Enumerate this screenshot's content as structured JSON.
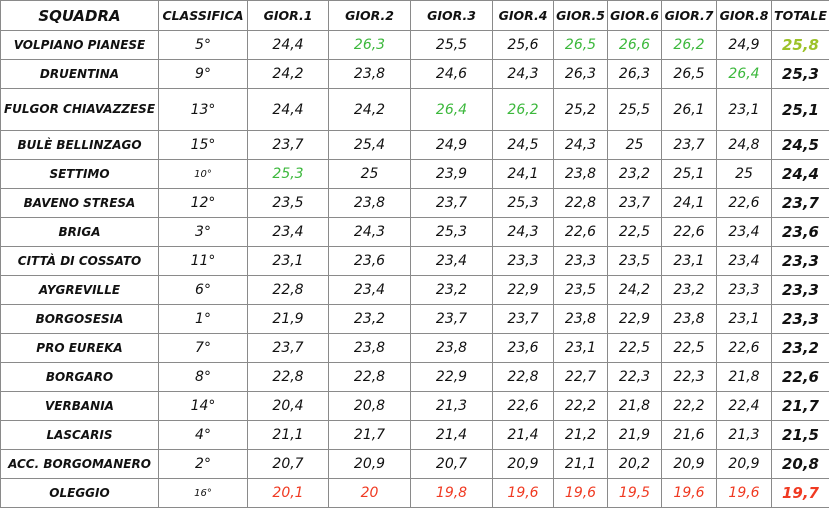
{
  "colors": {
    "green": "#3cb83c",
    "total_green": "#9cc228",
    "red": "#f03a22",
    "border": "#8a8a8a"
  },
  "headers": [
    "SQUADRA",
    "CLASSIFICA",
    "GIOR.1",
    "GIOR.2",
    "GIOR.3",
    "GIOR.4",
    "GIOR.5",
    "GIOR.6",
    "GIOR.7",
    "GIOR.8",
    "TOTALE"
  ],
  "rows": [
    {
      "team": "VOLPIANO PIANESE",
      "rank": "5°",
      "scores": [
        "24,4",
        "26,3",
        "25,5",
        "25,6",
        "26,5",
        "26,6",
        "26,2",
        "24,9"
      ],
      "total": "25,8",
      "hl": [
        "",
        "g",
        "",
        "",
        "g",
        "g",
        "g",
        ""
      ],
      "total_hl": "lg"
    },
    {
      "team": "DRUENTINA",
      "rank": "9°",
      "scores": [
        "24,2",
        "23,8",
        "24,6",
        "24,3",
        "26,3",
        "26,3",
        "26,5",
        "26,4"
      ],
      "total": "25,3",
      "hl": [
        "",
        "",
        "",
        "",
        "",
        "",
        "",
        "g"
      ],
      "total_hl": ""
    },
    {
      "team": "FULGOR CHIAVAZZESE",
      "rank": "13°",
      "scores": [
        "24,4",
        "24,2",
        "26,4",
        "26,2",
        "25,2",
        "25,5",
        "26,1",
        "23,1"
      ],
      "total": "25,1",
      "hl": [
        "",
        "",
        "g",
        "g",
        "",
        "",
        "",
        ""
      ],
      "total_hl": "",
      "tall": true
    },
    {
      "team": "BULÈ BELLINZAGO",
      "rank": "15°",
      "scores": [
        "23,7",
        "25,4",
        "24,9",
        "24,5",
        "24,3",
        "25",
        "23,7",
        "24,8"
      ],
      "total": "24,5",
      "hl": [],
      "total_hl": ""
    },
    {
      "team": "SETTIMO",
      "rank": "10°",
      "rank_small": true,
      "scores": [
        "25,3",
        "25",
        "23,9",
        "24,1",
        "23,8",
        "23,2",
        "25,1",
        "25"
      ],
      "total": "24,4",
      "hl": [
        "g"
      ],
      "total_hl": ""
    },
    {
      "team": "BAVENO STRESA",
      "rank": "12°",
      "scores": [
        "23,5",
        "23,8",
        "23,7",
        "25,3",
        "22,8",
        "23,7",
        "24,1",
        "22,6"
      ],
      "total": "23,7",
      "hl": [],
      "total_hl": ""
    },
    {
      "team": "BRIGA",
      "rank": "3°",
      "scores": [
        "23,4",
        "24,3",
        "25,3",
        "24,3",
        "22,6",
        "22,5",
        "22,6",
        "23,4"
      ],
      "total": "23,6",
      "hl": [],
      "total_hl": ""
    },
    {
      "team": "CITTÀ DI COSSATO",
      "rank": "11°",
      "scores": [
        "23,1",
        "23,6",
        "23,4",
        "23,3",
        "23,3",
        "23,5",
        "23,1",
        "23,4"
      ],
      "total": "23,3",
      "hl": [],
      "total_hl": ""
    },
    {
      "team": "AYGREVILLE",
      "rank": "6°",
      "scores": [
        "22,8",
        "23,4",
        "23,2",
        "22,9",
        "23,5",
        "24,2",
        "23,2",
        "23,3"
      ],
      "total": "23,3",
      "hl": [],
      "total_hl": ""
    },
    {
      "team": "BORGOSESIA",
      "rank": "1°",
      "scores": [
        "21,9",
        "23,2",
        "23,7",
        "23,7",
        "23,8",
        "22,9",
        "23,8",
        "23,1"
      ],
      "total": "23,3",
      "hl": [],
      "total_hl": ""
    },
    {
      "team": "PRO EUREKA",
      "rank": "7°",
      "scores": [
        "23,7",
        "23,8",
        "23,8",
        "23,6",
        "23,1",
        "22,5",
        "22,5",
        "22,6"
      ],
      "total": "23,2",
      "hl": [],
      "total_hl": ""
    },
    {
      "team": "BORGARO",
      "rank": "8°",
      "scores": [
        "22,8",
        "22,8",
        "22,9",
        "22,8",
        "22,7",
        "22,3",
        "22,3",
        "21,8"
      ],
      "total": "22,6",
      "hl": [],
      "total_hl": ""
    },
    {
      "team": "VERBANIA",
      "rank": "14°",
      "scores": [
        "20,4",
        "20,8",
        "21,3",
        "22,6",
        "22,2",
        "21,8",
        "22,2",
        "22,4"
      ],
      "total": "21,7",
      "hl": [],
      "total_hl": ""
    },
    {
      "team": "LASCARIS",
      "rank": "4°",
      "scores": [
        "21,1",
        "21,7",
        "21,4",
        "21,4",
        "21,2",
        "21,9",
        "21,6",
        "21,3"
      ],
      "total": "21,5",
      "hl": [],
      "total_hl": ""
    },
    {
      "team": "ACC. BORGOMANERO",
      "rank": "2°",
      "scores": [
        "20,7",
        "20,9",
        "20,7",
        "20,9",
        "21,1",
        "20,2",
        "20,9",
        "20,9"
      ],
      "total": "20,8",
      "hl": [],
      "total_hl": ""
    },
    {
      "team": "OLEGGIO",
      "rank": "16°",
      "rank_small": true,
      "scores": [
        "20,1",
        "20",
        "19,8",
        "19,6",
        "19,6",
        "19,5",
        "19,6",
        "19,6"
      ],
      "total": "19,7",
      "hl": [
        "red",
        "red",
        "red",
        "red",
        "red",
        "red",
        "red",
        "red"
      ],
      "total_hl": "red"
    }
  ]
}
